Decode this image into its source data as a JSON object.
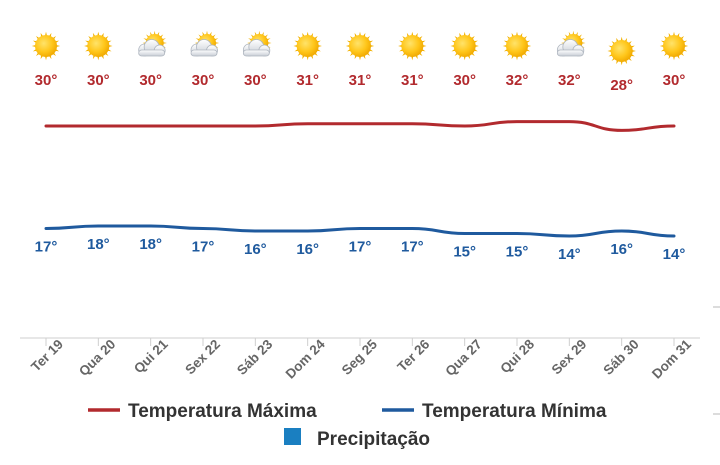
{
  "chart_data": {
    "type": "line",
    "categories": [
      "Ter 19",
      "Qua 20",
      "Qui 21",
      "Sex 22",
      "Sáb 23",
      "Dom 24",
      "Seg 25",
      "Ter 26",
      "Qua 27",
      "Qui 28",
      "Sex 29",
      "Sáb 30",
      "Dom 31"
    ],
    "icons": [
      "sun-icon",
      "sun-icon",
      "partly-cloudy-icon",
      "partly-cloudy-icon",
      "partly-cloudy-icon",
      "sun-icon",
      "sun-icon",
      "sun-icon",
      "sun-icon",
      "sun-icon",
      "partly-cloudy-icon",
      "sun-icon",
      "sun-icon"
    ],
    "series": [
      {
        "name": "Temperatura Máxima",
        "color": "#b22a2e",
        "values": [
          30,
          30,
          30,
          30,
          30,
          31,
          31,
          31,
          30,
          32,
          32,
          28,
          30
        ],
        "labels": [
          "30°",
          "30°",
          "30°",
          "30°",
          "30°",
          "31°",
          "31°",
          "31°",
          "30°",
          "32°",
          "32°",
          "28°",
          "30°"
        ]
      },
      {
        "name": "Temperatura Mínima",
        "color": "#1f5a9e",
        "values": [
          17,
          18,
          18,
          17,
          16,
          16,
          17,
          17,
          15,
          15,
          14,
          16,
          14
        ],
        "labels": [
          "17°",
          "18°",
          "18°",
          "17°",
          "16°",
          "16°",
          "17°",
          "17°",
          "15°",
          "15°",
          "14°",
          "16°",
          "14°"
        ]
      }
    ],
    "legend": [
      {
        "label": "Temperatura Máxima",
        "color": "#b22a2e",
        "symbol": "line"
      },
      {
        "label": "Temperatura Mínima",
        "color": "#1f5a9e",
        "symbol": "line"
      },
      {
        "label": "Precipitação",
        "color": "#1a7fc1",
        "symbol": "square"
      }
    ],
    "legend_position": "bottom",
    "grid": false
  }
}
